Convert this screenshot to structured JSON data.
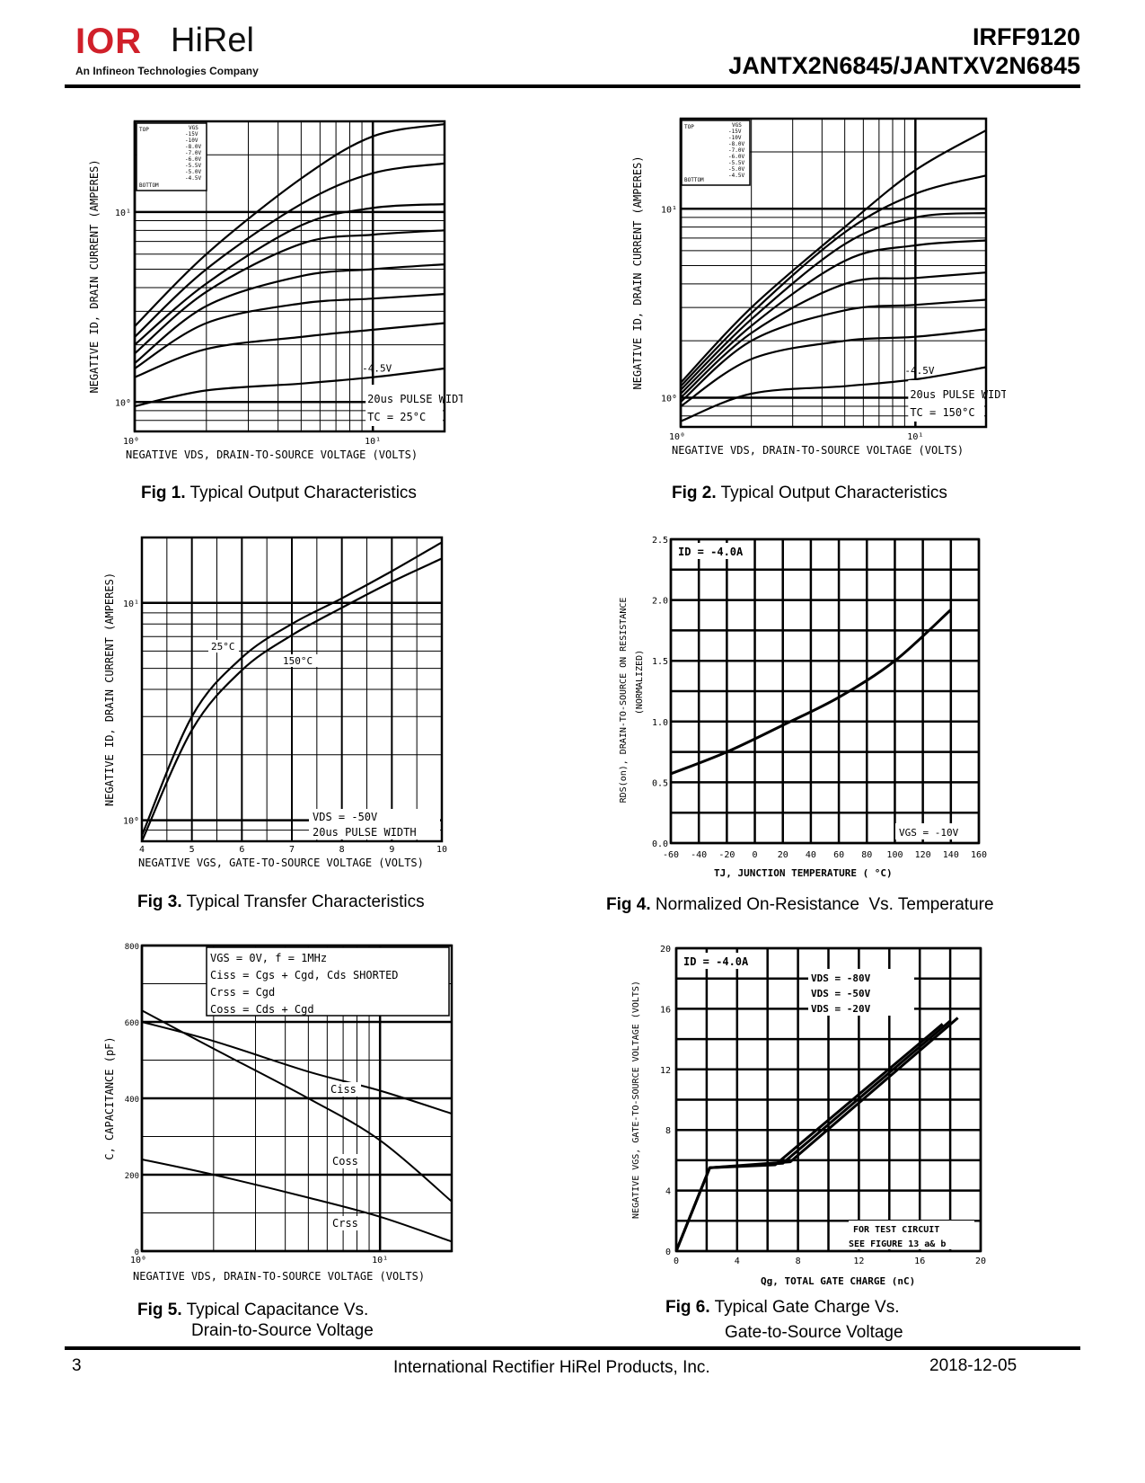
{
  "header": {
    "logo_ir": "IOR",
    "logo_hirel": "HiRel",
    "logo_tagline": "An Infineon Technologies Company",
    "part_line1": "IRFF9120",
    "part_line2": "JANTX2N6845/JANTXV2N6845"
  },
  "figures": [
    {
      "num": "Fig 1.",
      "title": "Typical Output Characteristics",
      "ylabel": "NEGATIVE ID, DRAIN CURRENT (AMPERES)",
      "xlabel": "NEGATIVE VDS, DRAIN-TO-SOURCE VOLTAGE (VOLTS)",
      "x_ticks": [
        "10⁰",
        "10¹"
      ],
      "y_ticks": [
        "10⁰",
        "10¹"
      ],
      "legend_header": "VGS",
      "legend_top": "TOP",
      "legend_bottom": "BOTTOM",
      "legend_values": [
        "-15V",
        "-10V",
        "-8.0V",
        "-7.0V",
        "-6.0V",
        "-5.5V",
        "-5.0V",
        "-4.5V"
      ],
      "curve_label": "-4.5V",
      "note1": "20us PULSE WIDTH",
      "note2": "TC = 25°C"
    },
    {
      "num": "Fig 2.",
      "title": "Typical Output Characteristics",
      "ylabel": "NEGATIVE ID, DRAIN CURRENT (AMPERES)",
      "xlabel": "NEGATIVE VDS, DRAIN-TO-SOURCE VOLTAGE (VOLTS)",
      "x_ticks": [
        "10⁰",
        "10¹"
      ],
      "y_ticks": [
        "10⁰",
        "10¹"
      ],
      "legend_header": "VGS",
      "legend_top": "TOP",
      "legend_bottom": "BOTTOM",
      "legend_values": [
        "-15V",
        "-10V",
        "-8.0V",
        "-7.0V",
        "-6.0V",
        "-5.5V",
        "-5.0V",
        "-4.5V"
      ],
      "curve_label": "-4.5V",
      "note1": "20us PULSE WIDTH",
      "note2": "TC = 150°C"
    },
    {
      "num": "Fig 3.",
      "title": "Typical Transfer Characteristics",
      "ylabel": "NEGATIVE ID, DRAIN CURRENT (AMPERES)",
      "xlabel": "NEGATIVE VGS, GATE-TO-SOURCE VOLTAGE (VOLTS)",
      "x_ticks": [
        "4",
        "5",
        "6",
        "7",
        "8",
        "9",
        "10"
      ],
      "y_ticks": [
        "10⁰",
        "10¹"
      ],
      "curve_labels": [
        "25°C",
        "150°C"
      ],
      "note1": "VDS = -50V",
      "note2": "20us PULSE WIDTH"
    },
    {
      "num": "Fig 4.",
      "title": "Normalized On-Resistance  Vs. Temperature",
      "ylabel": "RDS(on), DRAIN-TO-SOURCE ON RESISTANCE",
      "ylabel2": "(NORMALIZED)",
      "xlabel": "TJ, JUNCTION TEMPERATURE ( °C)",
      "x_ticks": [
        "-60",
        "-40",
        "-20",
        "0",
        "20",
        "40",
        "60",
        "80",
        "100",
        "120",
        "140",
        "160"
      ],
      "y_ticks": [
        "0.0",
        "0.5",
        "1.0",
        "1.5",
        "2.0",
        "2.5"
      ],
      "note1": "ID = -4.0A",
      "note2": "VGS = -10V"
    },
    {
      "num": "Fig 5.",
      "title": "Typical Capacitance Vs.",
      "title2": "Drain-to-Source Voltage",
      "ylabel": "C, CAPACITANCE (pF)",
      "xlabel": "NEGATIVE VDS, DRAIN-TO-SOURCE VOLTAGE (VOLTS)",
      "x_ticks": [
        "10⁰",
        "10¹"
      ],
      "y_ticks": [
        "0",
        "200",
        "400",
        "600",
        "800"
      ],
      "legend_lines": [
        "VGS = 0V,  f = 1MHz",
        "Ciss = Cgs + Cgd, Cds SHORTED",
        "Crss = Cgd",
        "Coss = Cds + Cgd"
      ],
      "curve_labels": [
        "Ciss",
        "Coss",
        "Crss"
      ]
    },
    {
      "num": "Fig 6.",
      "title": "Typical Gate Charge Vs.",
      "title2": "Gate-to-Source Voltage",
      "ylabel": "NEGATIVE VGS, GATE-TO-SOURCE VOLTAGE (VOLTS)",
      "xlabel": "Qg, TOTAL GATE CHARGE (nC)",
      "x_ticks": [
        "0",
        "4",
        "8",
        "12",
        "16",
        "20"
      ],
      "y_ticks": [
        "0",
        "4",
        "8",
        "12",
        "16",
        "20"
      ],
      "note1": "ID = -4.0A",
      "vds_labels": [
        "VDS = -80V",
        "VDS = -50V",
        "VDS = -20V"
      ],
      "test_note1": "FOR TEST CIRCUIT",
      "test_note2": "SEE FIGURE 13 a& b"
    }
  ],
  "chart_data": [
    {
      "type": "line",
      "title": "Fig 1. Typical Output Characteristics",
      "xlabel": "Negative VDS (V)",
      "ylabel": "Negative ID (A)",
      "xscale": "log",
      "yscale": "log",
      "xlim": [
        1,
        20
      ],
      "ylim": [
        0.7,
        30
      ],
      "x": [
        1,
        2,
        5,
        10,
        20
      ],
      "series": [
        {
          "name": "-15V",
          "values": [
            2.5,
            6,
            15,
            25,
            29
          ]
        },
        {
          "name": "-10V",
          "values": [
            2.2,
            5,
            11,
            16,
            18
          ]
        },
        {
          "name": "-8.0V",
          "values": [
            2.0,
            4.2,
            8.5,
            10.5,
            11
          ]
        },
        {
          "name": "-7.0V",
          "values": [
            1.8,
            3.8,
            6.8,
            7.6,
            8
          ]
        },
        {
          "name": "-6.0V",
          "values": [
            1.6,
            3.2,
            4.6,
            5.0,
            5.3
          ]
        },
        {
          "name": "-5.5V",
          "values": [
            1.5,
            2.6,
            3.3,
            3.5,
            3.7
          ]
        },
        {
          "name": "-5.0V",
          "values": [
            1.35,
            1.9,
            2.2,
            2.4,
            2.6
          ]
        },
        {
          "name": "-4.5V",
          "values": [
            0.95,
            1.15,
            1.25,
            1.35,
            1.5
          ]
        }
      ]
    },
    {
      "type": "line",
      "title": "Fig 2. Typical Output Characteristics",
      "xlabel": "Negative VDS (V)",
      "ylabel": "Negative ID (A)",
      "xscale": "log",
      "yscale": "log",
      "xlim": [
        1,
        20
      ],
      "ylim": [
        0.7,
        30
      ],
      "x": [
        1,
        2,
        5,
        10,
        20
      ],
      "series": [
        {
          "name": "-15V",
          "values": [
            1.2,
            3,
            8,
            16,
            26
          ]
        },
        {
          "name": "-10V",
          "values": [
            1.15,
            2.8,
            7.5,
            12,
            15
          ]
        },
        {
          "name": "-8.0V",
          "values": [
            1.1,
            2.6,
            6.5,
            9,
            9.5
          ]
        },
        {
          "name": "-7.0V",
          "values": [
            1.05,
            2.4,
            5.3,
            6.4,
            6.8
          ]
        },
        {
          "name": "-6.0V",
          "values": [
            1.0,
            2.2,
            4.0,
            4.3,
            4.6
          ]
        },
        {
          "name": "-5.5V",
          "values": [
            0.95,
            2.0,
            2.9,
            3.1,
            3.3
          ]
        },
        {
          "name": "-5.0V",
          "values": [
            0.9,
            1.6,
            2.0,
            2.1,
            2.3
          ]
        },
        {
          "name": "-4.5V",
          "values": [
            0.75,
            1.05,
            1.15,
            1.25,
            1.45
          ]
        }
      ]
    },
    {
      "type": "line",
      "title": "Fig 3. Typical Transfer Characteristics",
      "xlabel": "Negative VGS (V)",
      "ylabel": "Negative ID (A)",
      "yscale": "log",
      "xlim": [
        4,
        10
      ],
      "ylim": [
        0.8,
        20
      ],
      "x": [
        4,
        5,
        6,
        7,
        8,
        9,
        10
      ],
      "series": [
        {
          "name": "25°C",
          "values": [
            0.85,
            3,
            5.6,
            8,
            10.5,
            14,
            19
          ]
        },
        {
          "name": "150°C",
          "values": [
            0.8,
            2.6,
            4.9,
            7.1,
            9.5,
            12.5,
            16
          ]
        }
      ]
    },
    {
      "type": "line",
      "title": "Fig 4. Normalized On-Resistance Vs. Temperature",
      "xlabel": "TJ (°C)",
      "ylabel": "RDS(on) (Normalized)",
      "xlim": [
        -60,
        160
      ],
      "ylim": [
        0,
        2.5
      ],
      "x": [
        -60,
        -20,
        20,
        60,
        100,
        140
      ],
      "series": [
        {
          "name": "VGS = -10V",
          "values": [
            0.57,
            0.75,
            0.97,
            1.2,
            1.5,
            1.92
          ]
        }
      ]
    },
    {
      "type": "line",
      "title": "Fig 5. Typical Capacitance Vs. Drain-to-Source Voltage",
      "xlabel": "Negative VDS (V)",
      "ylabel": "Capacitance (pF)",
      "xscale": "log",
      "xlim": [
        1,
        20
      ],
      "ylim": [
        0,
        800
      ],
      "x": [
        1,
        2,
        5,
        10,
        20
      ],
      "series": [
        {
          "name": "Ciss",
          "values": [
            600,
            550,
            470,
            420,
            360
          ]
        },
        {
          "name": "Coss",
          "values": [
            630,
            530,
            400,
            290,
            130
          ]
        },
        {
          "name": "Crss",
          "values": [
            240,
            200,
            140,
            90,
            25
          ]
        }
      ]
    },
    {
      "type": "line",
      "title": "Fig 6. Typical Gate Charge Vs. Gate-to-Source Voltage",
      "xlabel": "Qg (nC)",
      "ylabel": "Negative VGS (V)",
      "xlim": [
        0,
        20
      ],
      "ylim": [
        0,
        20
      ],
      "series": [
        {
          "name": "VDS = -80V",
          "x": [
            0,
            2.2,
            6.5,
            17.5
          ],
          "values": [
            0,
            5.5,
            5.7,
            15
          ]
        },
        {
          "name": "VDS = -50V",
          "x": [
            0,
            2.2,
            7.0,
            18.0
          ],
          "values": [
            0,
            5.5,
            5.8,
            15.2
          ]
        },
        {
          "name": "VDS = -20V",
          "x": [
            0,
            2.2,
            7.5,
            18.5
          ],
          "values": [
            0,
            5.5,
            5.9,
            15.4
          ]
        }
      ]
    }
  ],
  "footer": {
    "page": "3",
    "company": "International Rectifier HiRel Products, Inc.",
    "date": "2018-12-05"
  }
}
